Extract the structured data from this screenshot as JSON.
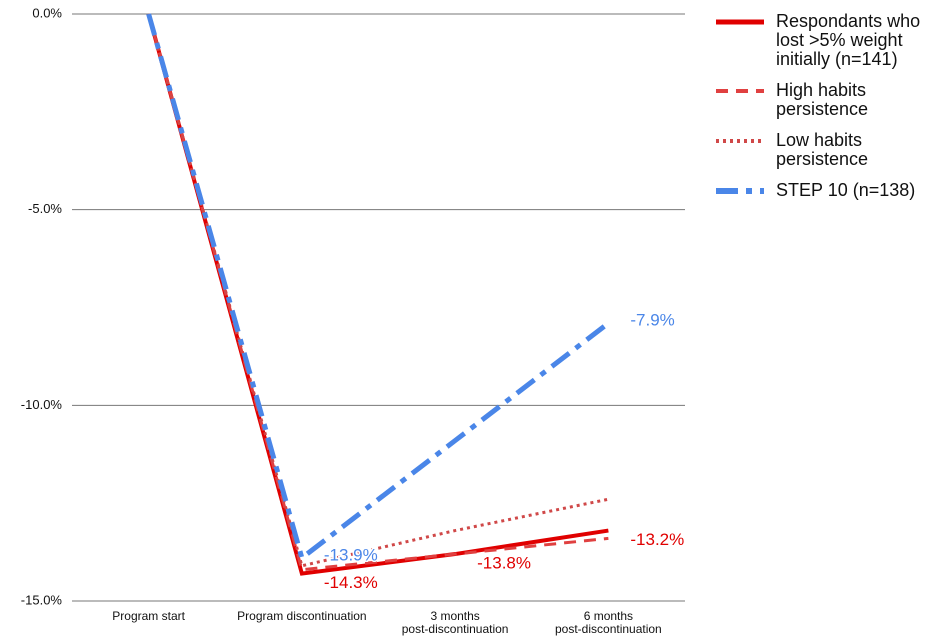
{
  "chart_data": {
    "type": "line",
    "categories": [
      "Program start",
      "Program discontinuation",
      "3 months\npost-discontinuation",
      "6 months\npost-discontinuation"
    ],
    "series": [
      {
        "name": "Respondants who lost >5% weight initially (n=141)",
        "color": "#e00000",
        "style": "solid",
        "values": [
          0,
          -14.3,
          -13.8,
          -13.2
        ],
        "value_labels": [
          null,
          "-14.3%",
          "-13.8%",
          "-13.2%"
        ]
      },
      {
        "name": "High habits persistence",
        "color": "#e04040",
        "style": "dashed",
        "values": [
          0,
          -14.2,
          -13.8,
          -13.4
        ]
      },
      {
        "name": "Low habits persistence",
        "color": "#d04848",
        "style": "dotted",
        "values": [
          0,
          -14.1,
          -13.2,
          -12.4
        ]
      },
      {
        "name": "STEP 10 (n=138)",
        "color": "#4a86e8",
        "style": "dashdot",
        "values": [
          0,
          -13.9,
          -10.9,
          -7.9
        ],
        "value_labels": [
          null,
          "-13.9%",
          null,
          "-7.9%"
        ]
      }
    ],
    "ylim": [
      -15,
      0
    ],
    "yticks": [
      {
        "value": 0,
        "label": "0.0%"
      },
      {
        "value": -5,
        "label": "-5.0%"
      },
      {
        "value": -10,
        "label": "-10.0%"
      },
      {
        "value": -15,
        "label": "-15.0%"
      }
    ],
    "grid": true,
    "legend": "right"
  }
}
